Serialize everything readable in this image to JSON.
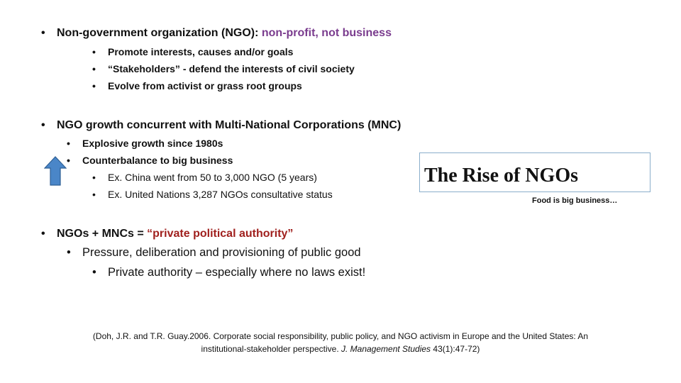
{
  "bullets": {
    "ngo_def": {
      "prefix": "Non-government organization (NGO): ",
      "highlight": "non-profit, not business",
      "highlight_color": "#7a3c8e",
      "items": [
        "Promote interests, causes and/or goals",
        "“Stakeholders” - defend the interests of civil society",
        "Evolve from activist or grass root groups"
      ]
    },
    "growth": {
      "text": "NGO growth concurrent with Multi-National Corporations (MNC)",
      "items": [
        "Explosive growth since 1980s",
        "Counterbalance to big business"
      ],
      "sub_items": [
        "Ex. China went from 50 to 3,000 NGO (5 years)",
        "Ex. United Nations 3,287 NGOs consultative status"
      ],
      "arrow_icon": "up-arrow-icon",
      "arrow_color": "#4a86c8"
    },
    "authority": {
      "prefix": "NGOs + MNCs = ",
      "highlight": "“private political authority”",
      "highlight_color": "#a0201e",
      "item": "Pressure, deliberation and provisioning of public good",
      "sub_item": "Private authority – especially where no laws exist!"
    }
  },
  "callout": {
    "title": "The Rise of NGOs",
    "subtitle": "Food is big business…",
    "border_color": "#8aaecb"
  },
  "citation": {
    "part1": "(Doh, J.R. and T.R. Guay.2006. Corporate social responsibility, public policy, and NGO activism in Europe and the United States: An institutional-stakeholder perspective. ",
    "journal": "J. Management Studies",
    "part2": " 43(1):47-72)"
  },
  "bullet_glyph": "•"
}
